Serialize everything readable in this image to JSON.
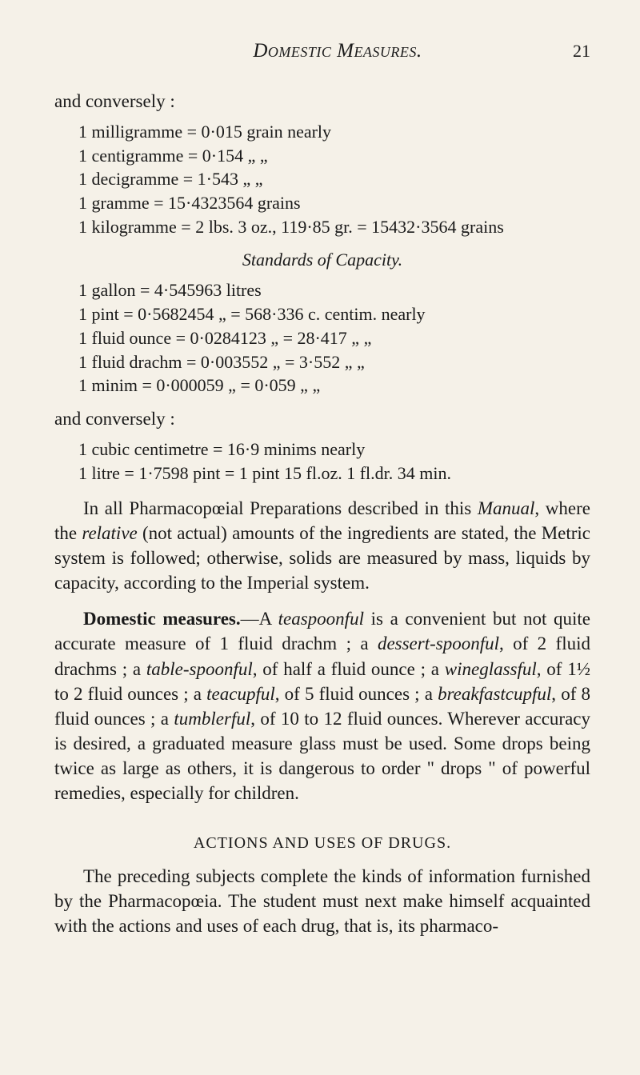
{
  "header": {
    "title": "Domestic Measures.",
    "page_number": "21"
  },
  "converse1": "and conversely :",
  "mass_lines": [
    "1 milligramme = 0·015 grain nearly",
    "1 centigramme = 0·154   „    „",
    "1 decigramme  = 1·543   „    „",
    "1 gramme      = 15·4323564 grains",
    "1 kilogramme  = 2 lbs. 3 oz., 119·85 gr. = 15432·3564 grains"
  ],
  "capacity_title": "Standards of Capacity.",
  "cap_lines": [
    "1 gallon        = 4·545963 litres",
    "1 pint          = 0·5682454  „  = 568·336 c. centim. nearly",
    "1 fluid ounce   = 0·0284123  „  =  28·417     „        „",
    "1 fluid drachm = 0·003552   „  =   3·552     „        „",
    "1 minim        = 0·000059   „  =   0·059     „        „"
  ],
  "converse2": "and conversely :",
  "conv_lines": [
    "1 cubic centimetre     = 16·9 minims nearly",
    "1 litre = 1·7598 pint = 1 pint 15 fl.oz. 1 fl.dr. 34 min."
  ],
  "para1_pre": "In all Pharmacopœial Preparations described in this ",
  "para1_italic1": "Manual",
  "para1_mid1": ", where the ",
  "para1_italic2": "relative",
  "para1_post": " (not actual) amounts of the ingredients are stated, the Metric system is followed; otherwise, solids are measured by mass, liquids by capacity, according to the Imperial system.",
  "para2_bold": "Domestic measures.",
  "para2_a": "—A ",
  "para2_i1": "teaspoonful",
  "para2_b": " is a convenient but not quite accurate measure of 1 fluid drachm ; a ",
  "para2_i2": "dessert-spoonful",
  "para2_c": ", of 2 fluid drachms ; a ",
  "para2_i3": "table-spoonful",
  "para2_d": ", of half a fluid ounce ; a ",
  "para2_i4": "wineglassful",
  "para2_e": ", of 1½ to 2 fluid ounces ; a ",
  "para2_i5": "teacupful",
  "para2_f": ", of 5 fluid ounces ; a ",
  "para2_i6": "breakfastcupful",
  "para2_g": ", of 8 fluid ounces ; a ",
  "para2_i7": "tumblerful",
  "para2_h": ", of 10 to 12 fluid ounces. Wherever accuracy is desired, a graduated measure glass must be used. Some drops being twice as large as others, it is dangerous to order \" drops \" of powerful remedies, especially for children.",
  "subhead": "ACTIONS AND USES OF DRUGS.",
  "para3": "The preceding subjects complete the kinds of information furnished by the Pharmacopœia. The student must next make himself acquainted with the actions and uses of each drug, that is, its pharmaco-",
  "colors": {
    "background": "#f5f1e8",
    "text": "#1a1a1a"
  }
}
